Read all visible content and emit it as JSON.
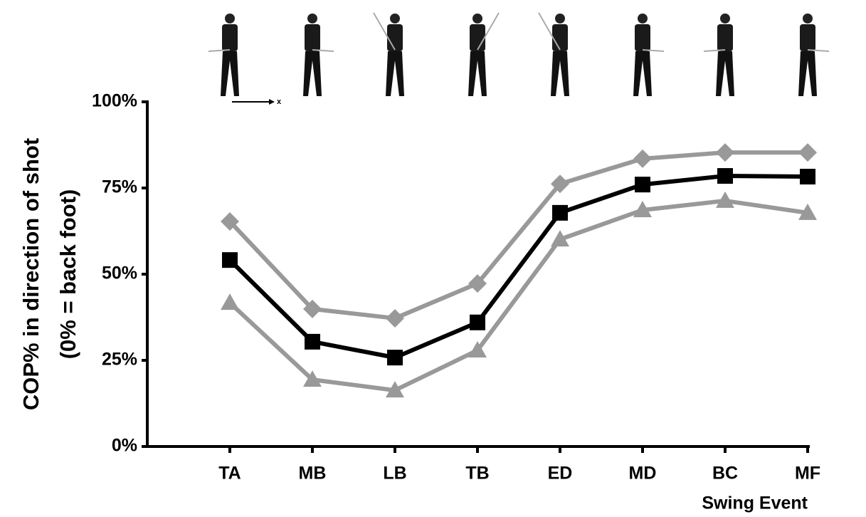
{
  "chart_data": {
    "type": "line",
    "ylabel": [
      "COP% in direction of shot",
      "(0% = back foot)"
    ],
    "xlabel": "Swing Event",
    "direction_label": "x",
    "categories": [
      null,
      "TA",
      "MB",
      "LB",
      "TB",
      "ED",
      "MD",
      "BC",
      "MF"
    ],
    "series": [
      {
        "color": "#999999",
        "marker": "diamond",
        "values": [
          null,
          65.3,
          39.9,
          37.2,
          47.3,
          76.2,
          83.5,
          85.3,
          85.3
        ]
      },
      {
        "color": "#999999",
        "marker": "triangle",
        "values": [
          null,
          41.7,
          19.4,
          16.3,
          27.9,
          60.1,
          68.6,
          71.3,
          67.8
        ]
      },
      {
        "color": "#000000",
        "marker": "square",
        "values": [
          null,
          54.1,
          30.4,
          25.8,
          36.0,
          67.8,
          76.0,
          78.5,
          78.3
        ]
      }
    ],
    "ylim": [
      0,
      100
    ],
    "yticks": [
      {
        "value": 0,
        "label": "0%"
      },
      {
        "value": 25,
        "label": "25%"
      },
      {
        "value": 50,
        "label": "50%"
      },
      {
        "value": 75,
        "label": "75%"
      },
      {
        "value": 100,
        "label": "100%"
      }
    ]
  }
}
